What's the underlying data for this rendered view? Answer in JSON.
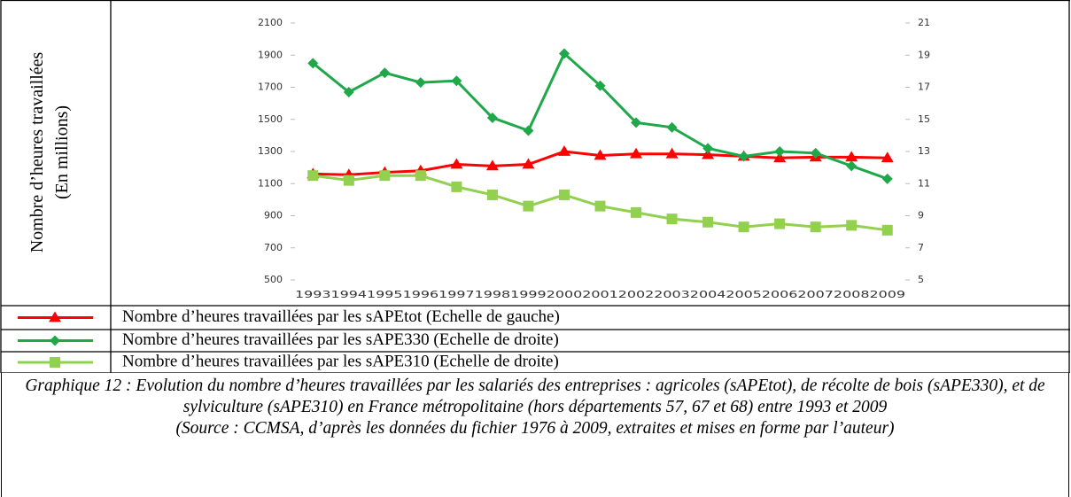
{
  "chart_data": {
    "type": "line",
    "y_label": "Nombre d’heures travaillées",
    "y_label_sub": "(En millions)",
    "categories": [
      "1993",
      "1994",
      "1995",
      "1996",
      "1997",
      "1998",
      "1999",
      "2000",
      "2001",
      "2002",
      "2003",
      "2004",
      "2005",
      "2006",
      "2007",
      "2008",
      "2009"
    ],
    "series": [
      {
        "name": "Nombre d’heures travaillées par les sAPEtot (Echelle de gauche)",
        "color": "#ff0000",
        "marker": "triangle",
        "values": [
          1160,
          1155,
          1170,
          1180,
          1220,
          1210,
          1220,
          1300,
          1275,
          1285,
          1285,
          1280,
          1270,
          1260,
          1265,
          1265,
          1260
        ]
      },
      {
        "name": "Nombre d’heures travaillées par les sAPE330 (Echelle de droite)",
        "color": "#1fa84a",
        "marker": "diamond",
        "axis": "y2",
        "values": [
          18.5,
          16.7,
          17.9,
          17.3,
          17.4,
          15.1,
          14.3,
          19.1,
          17.1,
          14.8,
          14.5,
          13.2,
          12.7,
          13.0,
          12.9,
          12.1,
          11.3
        ]
      },
      {
        "name": "Nombre d’heures travaillées par les sAPE310 (Echelle de droite)",
        "color": "#92d050",
        "marker": "square",
        "axis": "y2",
        "values": [
          11.5,
          11.2,
          11.5,
          11.5,
          10.8,
          10.3,
          9.6,
          10.3,
          9.6,
          9.2,
          8.8,
          8.6,
          8.3,
          8.5,
          8.3,
          8.4,
          8.1
        ]
      }
    ],
    "ylim": [
      500,
      2100
    ],
    "yticks": [
      500,
      700,
      900,
      1100,
      1300,
      1500,
      1700,
      1900,
      2100
    ],
    "y2lim": [
      5,
      21
    ],
    "y2ticks": [
      5,
      7,
      9,
      11,
      13,
      15,
      17,
      19,
      21
    ],
    "grid": false,
    "caption": "Graphique 12 : Evolution du nombre d’heures travaillées par les salariés des entreprises : agricoles (sAPEtot), de récolte de bois (sAPE330), et de sylviculture (sAPE310) en France métropolitaine (hors départements 57, 67 et 68) entre 1993 et 2009",
    "source": "(Source : CCMSA, d’après les données du fichier 1976 à 2009, extraites et mises en forme par l’auteur)"
  }
}
